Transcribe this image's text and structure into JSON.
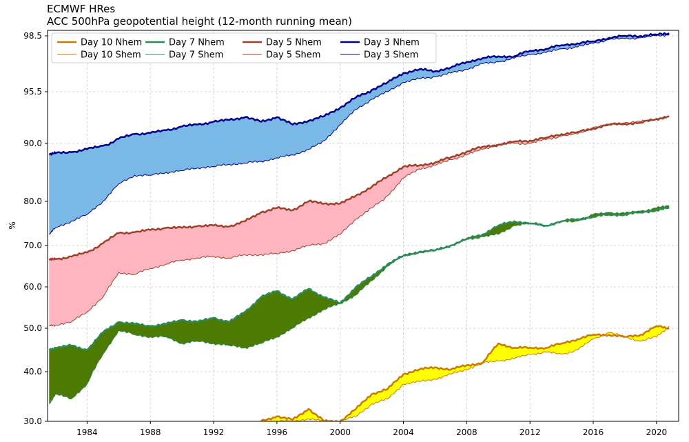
{
  "title": "ECMWF HRes",
  "subtitle": "ACC 500hPa geopotential height (12-month running mean)",
  "chart_data": {
    "type": "area",
    "title": "ECMWF HRes",
    "subtitle": "ACC 500hPa geopotential height (12-month running mean)",
    "xlabel": "",
    "ylabel": "%",
    "xlim": [
      1981.5,
      2021.4
    ],
    "y_scale": "nonlinear (stretched toward 100)",
    "y_ticks": [
      30.0,
      40.0,
      50.0,
      60.0,
      70.0,
      80.0,
      90.0,
      95.5,
      98.5
    ],
    "y_tick_labels": [
      "30.0",
      "40.0",
      "50.0",
      "60.0",
      "70.0",
      "80.0",
      "90.0",
      "95.5",
      "98.5"
    ],
    "x_ticks": [
      1984,
      1988,
      1992,
      1996,
      2000,
      2004,
      2008,
      2012,
      2016,
      2020
    ],
    "x_tick_labels": [
      "1984",
      "1988",
      "1992",
      "1996",
      "2000",
      "2004",
      "2008",
      "2012",
      "2016",
      "2020"
    ],
    "grid": true,
    "legend_position": "top-left",
    "legend_columns": 4,
    "x": [
      1981.6,
      1982,
      1983,
      1984,
      1985,
      1986,
      1987,
      1988,
      1989,
      1990,
      1991,
      1992,
      1993,
      1994,
      1995,
      1996,
      1997,
      1998,
      1999,
      2000,
      2001,
      2002,
      2003,
      2004,
      2005,
      2006,
      2007,
      2008,
      2009,
      2010,
      2011,
      2012,
      2013,
      2014,
      2015,
      2016,
      2017,
      2018,
      2019,
      2020,
      2020.8
    ],
    "series": [
      {
        "name": "Day 3 Nhem",
        "color": "#00008b",
        "line_width": 2.5,
        "values": [
          88.2,
          88.3,
          88.5,
          89.0,
          89.6,
          90.5,
          91.0,
          91.1,
          91.4,
          91.8,
          92.0,
          92.3,
          92.5,
          92.8,
          92.3,
          92.8,
          92.0,
          92.4,
          92.9,
          93.8,
          94.9,
          95.6,
          96.0,
          96.5,
          96.7,
          96.6,
          96.8,
          97.1,
          97.3,
          97.4,
          97.4,
          97.7,
          97.8,
          98.0,
          98.1,
          98.2,
          98.4,
          98.5,
          98.5,
          98.6,
          98.7
        ]
      },
      {
        "name": "Day 3 Shem",
        "color": "#00008b",
        "line_width": 1.0,
        "values": [
          72.5,
          74.0,
          75.5,
          77.0,
          80.0,
          83.0,
          84.5,
          84.5,
          85.0,
          85.3,
          85.8,
          86.0,
          86.4,
          86.6,
          86.9,
          87.5,
          88.0,
          89.0,
          90.3,
          92.0,
          93.6,
          94.7,
          95.5,
          96.0,
          96.2,
          96.3,
          96.5,
          96.7,
          97.0,
          97.1,
          97.3,
          97.5,
          97.6,
          97.8,
          97.9,
          98.1,
          98.3,
          98.35,
          98.4,
          98.5,
          98.6
        ]
      },
      {
        "name": "Day 5 Nhem",
        "color": "#a0402a",
        "line_width": 2.5,
        "values": [
          66.5,
          66.7,
          67.3,
          68.3,
          70.5,
          72.8,
          73.0,
          73.5,
          74.0,
          74.0,
          74.4,
          74.5,
          74.3,
          75.5,
          77.5,
          78.5,
          78.0,
          80.0,
          79.5,
          79.5,
          81.0,
          82.5,
          84.3,
          86.0,
          86.2,
          86.7,
          87.6,
          88.6,
          89.4,
          89.8,
          90.2,
          90.3,
          90.6,
          91.0,
          91.2,
          91.6,
          92.0,
          92.1,
          92.2,
          92.6,
          92.9
        ]
      },
      {
        "name": "Day 5 Shem",
        "color": "#a0402a",
        "line_width": 1.0,
        "values": [
          50.5,
          50.8,
          51.5,
          54.0,
          57.5,
          63.5,
          63.0,
          64.5,
          65.5,
          66.5,
          67.0,
          67.3,
          67.0,
          67.7,
          67.8,
          68.0,
          68.8,
          70.0,
          70.5,
          72.5,
          76.0,
          78.5,
          81.0,
          84.0,
          85.6,
          86.2,
          87.2,
          88.0,
          89.0,
          89.8,
          90.0,
          90.0,
          90.4,
          90.8,
          91.0,
          91.7,
          92.0,
          92.2,
          92.3,
          92.6,
          92.8
        ]
      },
      {
        "name": "Day 7 Nhem",
        "color": "#2e8b57",
        "line_width": 2.5,
        "values": [
          45.0,
          45.5,
          46.0,
          45.0,
          49.0,
          51.5,
          51.0,
          50.5,
          51.0,
          52.0,
          51.5,
          52.5,
          51.5,
          54.0,
          57.5,
          59.0,
          57.0,
          59.5,
          57.5,
          56.0,
          60.0,
          62.5,
          65.5,
          67.5,
          68.5,
          68.8,
          70.0,
          71.5,
          72.5,
          74.5,
          75.5,
          75.0,
          74.5,
          75.5,
          76.0,
          76.5,
          77.0,
          77.0,
          77.5,
          78.0,
          78.5
        ]
      },
      {
        "name": "Day 7 Shem",
        "color": "#2e8b57",
        "line_width": 1.0,
        "values": [
          33.5,
          35.5,
          34.5,
          37.5,
          44.0,
          49.5,
          48.5,
          48.0,
          48.0,
          46.5,
          47.0,
          46.5,
          46.0,
          45.5,
          46.5,
          48.0,
          50.0,
          52.5,
          54.5,
          56.0,
          58.0,
          61.5,
          65.0,
          67.5,
          68.3,
          68.8,
          70.0,
          71.3,
          72.0,
          72.5,
          74.5,
          75.0,
          74.5,
          75.3,
          75.5,
          77.0,
          77.5,
          77.3,
          77.8,
          78.5,
          79.0
        ]
      },
      {
        "name": "Day 10 Nhem",
        "color": "#cc7a00",
        "line_width": 2.5,
        "values": [
          null,
          null,
          null,
          null,
          null,
          null,
          null,
          null,
          null,
          null,
          null,
          null,
          null,
          null,
          30.0,
          31.0,
          30.3,
          32.5,
          30.0,
          30.0,
          32.5,
          35.5,
          36.5,
          39.5,
          40.5,
          41.0,
          40.5,
          41.5,
          42.0,
          46.5,
          45.5,
          45.5,
          45.5,
          46.5,
          47.5,
          48.5,
          48.5,
          48.0,
          48.5,
          50.5,
          50.0
        ]
      },
      {
        "name": "Day 10 Shem",
        "color": "#cc7a00",
        "line_width": 1.0,
        "values": [
          null,
          null,
          null,
          null,
          null,
          null,
          null,
          null,
          null,
          null,
          null,
          null,
          null,
          null,
          30.0,
          30.0,
          30.0,
          30.5,
          30.0,
          30.0,
          31.0,
          33.5,
          34.5,
          37.5,
          38.0,
          38.5,
          39.5,
          40.5,
          42.0,
          42.5,
          43.0,
          44.0,
          44.5,
          44.0,
          45.0,
          47.5,
          49.0,
          48.0,
          47.0,
          48.0,
          50.5
        ]
      }
    ],
    "fills": [
      {
        "between": [
          "Day 3 Nhem",
          "Day 3 Shem"
        ],
        "color": "#7ab8e6"
      },
      {
        "between": [
          "Day 5 Nhem",
          "Day 5 Shem"
        ],
        "color": "#ffb6c1"
      },
      {
        "between": [
          "Day 7 Nhem",
          "Day 7 Shem"
        ],
        "color": "#4d7a00"
      },
      {
        "between": [
          "Day 10 Nhem",
          "Day 10 Shem"
        ],
        "color": "#ffff00"
      }
    ],
    "legend_order": [
      "Day 10 Nhem",
      "Day 7 Nhem",
      "Day 5 Nhem",
      "Day 3 Nhem",
      "Day 10 Shem",
      "Day 7 Shem",
      "Day 5 Shem",
      "Day 3 Shem"
    ]
  }
}
